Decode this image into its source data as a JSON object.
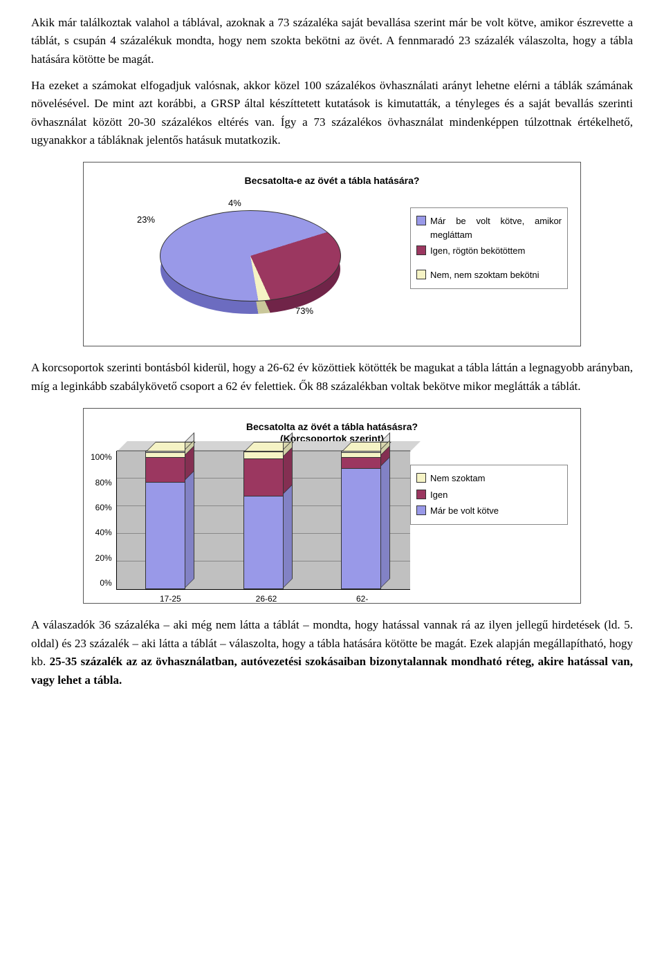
{
  "paragraphs": {
    "p1": "Akik már találkoztak valahol a táblával, azoknak a 73 százaléka saját bevallása szerint már be volt kötve, amikor észrevette a táblát, s csupán 4 százalékuk mondta, hogy nem szokta bekötni az övét. A fennmaradó 23 százalék válaszolta, hogy a tábla hatására kötötte be magát.",
    "p2": "Ha ezeket a számokat elfogadjuk valósnak, akkor közel 100 százalékos övhasználati arányt lehetne elérni a táblák számának növelésével. De mint azt korábbi, a GRSP által készíttetett kutatások is kimutatták, a tényleges és a saját bevallás szerinti övhasználat között 20-30 százalékos eltérés van. Így a 73 százalékos övhasználat mindenképpen túlzottnak értékelhető, ugyanakkor a tábláknak jelentős hatásuk mutatkozik.",
    "p3": "A korcsoportok szerinti bontásból kiderül, hogy a 26-62 év közöttiek kötötték be magukat a tábla láttán a legnagyobb arányban, míg a leginkább szabálykövető csoport a 62 év felettiek. Ők 88 százalékban voltak bekötve mikor meglátták a táblát.",
    "p4_a": "A válaszadók 36 százaléka – aki még nem látta a táblát – mondta, hogy hatással vannak rá az ilyen jellegű hirdetések (ld. 5. oldal) és 23 százalék – aki látta a táblát – válaszolta, hogy a tábla hatására kötötte be magát. Ezek alapján megállapítható, hogy kb. ",
    "p4_b": "25-35 százalék az az övhasználatban, autóvezetési szokásaiban bizonytalannak mondható réteg, akire hatással van, vagy lehet a tábla."
  },
  "pie_chart": {
    "title": "Becsatolta-e az övét a tábla hatására?",
    "slices": {
      "already": {
        "label": "Már be volt kötve, amikor megláttam",
        "value": 73,
        "value_label": "73%",
        "color": "#9999e8"
      },
      "yes": {
        "label": "Igen, rögtön bekötöttem",
        "value": 23,
        "value_label": "23%",
        "color": "#9b3760"
      },
      "no": {
        "label": "Nem, nem szoktam bekötni",
        "value": 4,
        "value_label": "4%",
        "color": "#f5f3c5"
      }
    },
    "background_color": "#ffffff",
    "label_fontsize": 13,
    "title_fontsize": 14
  },
  "bar_chart": {
    "title_line1": "Becsatolta az övét a tábla hatásásra?",
    "title_line2": "(Korcsoportok szerint)",
    "y_ticks": [
      "100%",
      "80%",
      "60%",
      "40%",
      "20%",
      "0%"
    ],
    "ylim": [
      0,
      100
    ],
    "categories": [
      "17-25",
      "26-62",
      "62-"
    ],
    "series_order": [
      "already",
      "yes",
      "no"
    ],
    "series": {
      "no": {
        "label": "Nem szoktam",
        "color": "#f5f3c5"
      },
      "yes": {
        "label": "Igen",
        "color": "#9b3760"
      },
      "already": {
        "label": "Már be volt kötve",
        "color": "#9999e8"
      }
    },
    "data": {
      "17-25": {
        "already": 78,
        "yes": 18,
        "no": 4
      },
      "26-62": {
        "already": 68,
        "yes": 27,
        "no": 5
      },
      "62-": {
        "already": 88,
        "yes": 8,
        "no": 4
      }
    },
    "plot_background": "#c0c0c0",
    "grid_color": "#888888",
    "title_fontsize": 14,
    "label_fontsize": 12
  }
}
